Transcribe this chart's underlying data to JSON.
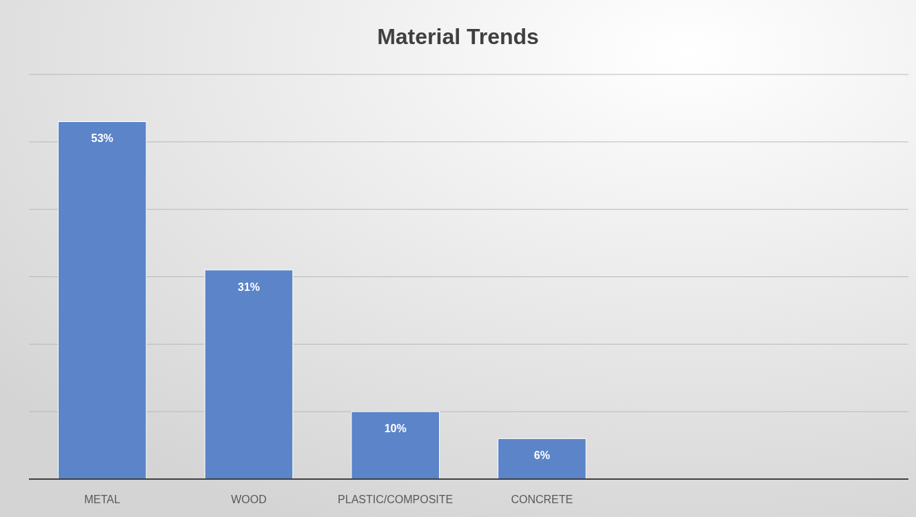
{
  "chart_data": {
    "type": "bar",
    "title": "Material Trends",
    "categories": [
      "METAL",
      "WOOD",
      "PLASTIC/COMPOSITE",
      "CONCRETE",
      null,
      null
    ],
    "values": [
      53,
      31,
      10,
      6,
      null,
      null
    ],
    "value_labels": [
      "53%",
      "31%",
      "10%",
      "6%",
      null,
      null
    ],
    "color": "#5b84c9",
    "ylim": [
      0,
      60
    ],
    "yticks": [
      {
        "value": 0,
        "label": null
      },
      {
        "value": 10,
        "label": null
      },
      {
        "value": 20,
        "label": null
      },
      {
        "value": 30,
        "label": null
      },
      {
        "value": 40,
        "label": null
      },
      {
        "value": 50,
        "label": null
      },
      {
        "value": 60,
        "label": null
      }
    ],
    "grid": true,
    "tick_labels": "x"
  }
}
